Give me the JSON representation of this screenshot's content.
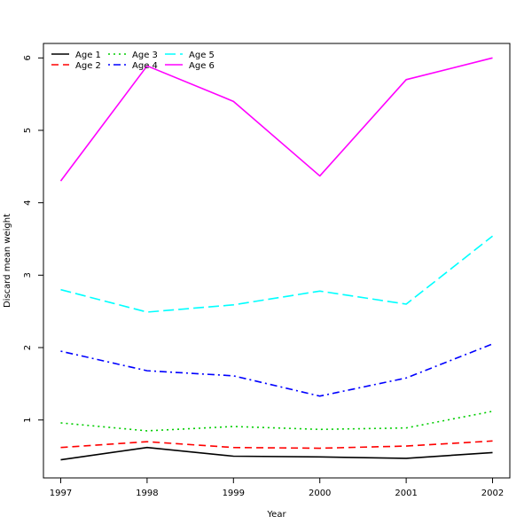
{
  "chart_data": {
    "type": "line",
    "xlabel": "Year",
    "ylabel": "Discard mean weight",
    "x": [
      1997,
      1998,
      1999,
      2000,
      2001,
      2002
    ],
    "xlim": [
      1996.8,
      2002.2
    ],
    "ylim": [
      0.2,
      6.2
    ],
    "yticks": [
      1,
      2,
      3,
      4,
      5,
      6
    ],
    "xticks": [
      1997,
      1998,
      1999,
      2000,
      2001,
      2002
    ],
    "legend_position": "top-left",
    "series": [
      {
        "name": "Age 1",
        "color": "#000000",
        "dash": "solid",
        "values": [
          0.45,
          0.62,
          0.5,
          0.49,
          0.47,
          0.55
        ]
      },
      {
        "name": "Age 2",
        "color": "#ff0000",
        "dash": "dashed",
        "values": [
          0.62,
          0.7,
          0.62,
          0.61,
          0.64,
          0.71
        ]
      },
      {
        "name": "Age 3",
        "color": "#00cd00",
        "dash": "dotted",
        "values": [
          0.96,
          0.85,
          0.91,
          0.87,
          0.89,
          1.12
        ]
      },
      {
        "name": "Age 4",
        "color": "#0000ff",
        "dash": "dotdash",
        "values": [
          1.95,
          1.68,
          1.61,
          1.33,
          1.58,
          2.05
        ]
      },
      {
        "name": "Age 5",
        "color": "#00ffff",
        "dash": "longdash",
        "values": [
          2.8,
          2.49,
          2.59,
          2.78,
          2.6,
          3.54
        ]
      },
      {
        "name": "Age 6",
        "color": "#ff00ff",
        "dash": "solid",
        "values": [
          4.3,
          5.89,
          5.4,
          4.37,
          5.7,
          6.0
        ]
      }
    ]
  }
}
